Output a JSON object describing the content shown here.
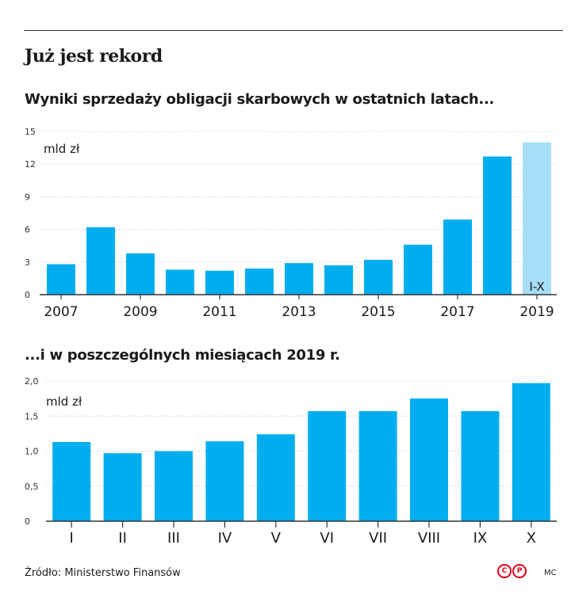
{
  "title": "Już jest rekord",
  "source": "Źródło: Ministerstwo Finansów",
  "copyright": {
    "first": "C",
    "second": "P"
  },
  "author": "MC",
  "colors": {
    "bar": "#00aeef",
    "bar_partial": "#a6def7",
    "axis": "#333333",
    "grid": "#bdbdbd",
    "logo": "#e2001a"
  },
  "chart_data": [
    {
      "type": "bar",
      "title": "Wyniki sprzedaży obligacji skarbowych w ostatnich latach...",
      "ylabel": "mld zł",
      "xlabel": "",
      "ylim": [
        0,
        15
      ],
      "yticks": [
        "15",
        "12",
        "9",
        "6",
        "3",
        "0"
      ],
      "ytick_values": [
        15,
        12,
        9,
        6,
        3,
        0
      ],
      "categories": [
        "2007",
        "2008",
        "2009",
        "2010",
        "2011",
        "2012",
        "2013",
        "2014",
        "2015",
        "2016",
        "2017",
        "2018",
        "2019"
      ],
      "x_tick_labels": [
        "2007",
        "",
        "2009",
        "",
        "2011",
        "",
        "2013",
        "",
        "2015",
        "",
        "2017",
        "",
        "2019"
      ],
      "values": [
        2.8,
        6.2,
        3.8,
        2.3,
        2.2,
        2.4,
        2.9,
        2.7,
        3.2,
        4.6,
        6.9,
        12.7,
        14.0
      ],
      "partial_index": 12,
      "partial_label": "I-X",
      "grid": true
    },
    {
      "type": "bar",
      "title": "...i w poszczególnych miesiącach 2019 r.",
      "ylabel": "mld zł",
      "xlabel": "",
      "ylim": [
        0,
        2.0
      ],
      "yticks": [
        "2,0",
        "1,5",
        "1,0",
        "0,5",
        "0"
      ],
      "ytick_values": [
        2.0,
        1.5,
        1.0,
        0.5,
        0
      ],
      "categories": [
        "I",
        "II",
        "III",
        "IV",
        "V",
        "VI",
        "VII",
        "VIII",
        "IX",
        "X"
      ],
      "x_tick_labels": [
        "I",
        "II",
        "III",
        "IV",
        "V",
        "VI",
        "VII",
        "VIII",
        "IX",
        "X"
      ],
      "values": [
        1.13,
        0.97,
        1.0,
        1.14,
        1.24,
        1.57,
        1.57,
        1.75,
        1.57,
        1.97
      ],
      "grid": true
    }
  ]
}
